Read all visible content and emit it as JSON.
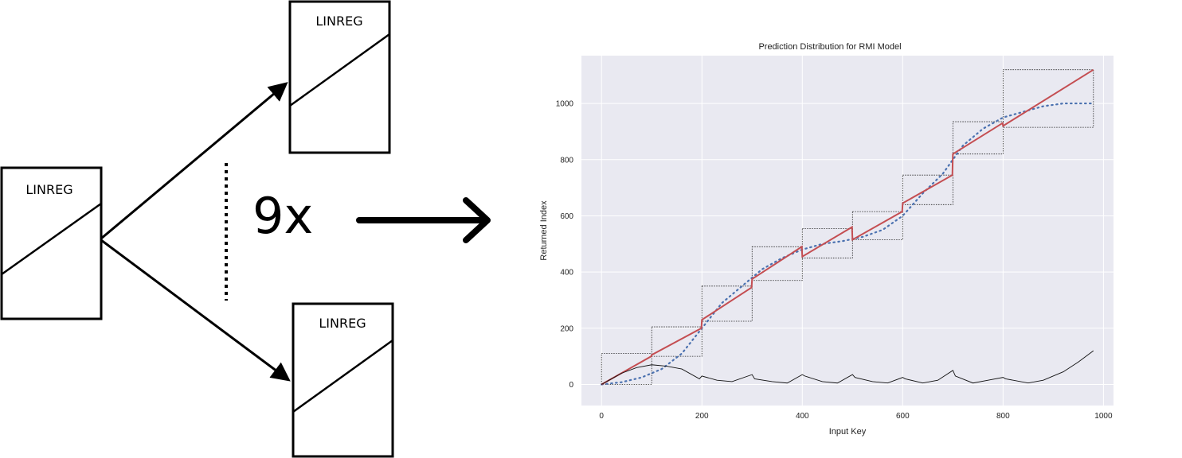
{
  "diagram": {
    "root_label": "LINREG",
    "top_child_label": "LINREG",
    "bottom_child_label": "LINREG",
    "multiplier_label": "9x"
  },
  "chart_data": {
    "type": "line",
    "title": "Prediction Distribution for RMI Model",
    "xlabel": "Input Key",
    "ylabel": "Returned Index",
    "xlim": [
      -40,
      1020
    ],
    "ylim": [
      -75,
      1170
    ],
    "xticks": [
      0,
      200,
      400,
      600,
      800,
      1000
    ],
    "yticks": [
      0,
      200,
      400,
      600,
      800,
      1000
    ],
    "grid": true,
    "background": "#e9e9f1",
    "series": [
      {
        "style": "dotted",
        "color": "#4c72b0",
        "x": [
          0,
          40,
          80,
          120,
          160,
          200,
          240,
          280,
          320,
          360,
          400,
          440,
          480,
          520,
          560,
          600,
          640,
          680,
          720,
          760,
          800,
          840,
          880,
          920,
          960,
          980
        ],
        "y": [
          0,
          8,
          25,
          55,
          110,
          200,
          290,
          350,
          410,
          450,
          480,
          500,
          510,
          525,
          550,
          600,
          680,
          750,
          850,
          910,
          950,
          970,
          990,
          1000,
          1000,
          1000
        ]
      },
      {
        "style": "solid",
        "color": "#c44e52",
        "x": [
          0,
          99,
          100,
          199,
          200,
          299,
          300,
          399,
          400,
          499,
          500,
          599,
          600,
          699,
          700,
          799,
          800,
          980
        ],
        "y": [
          0,
          100,
          105,
          200,
          230,
          345,
          375,
          490,
          455,
          560,
          515,
          615,
          645,
          745,
          820,
          930,
          920,
          1120
        ]
      },
      {
        "style": "solid",
        "color": "#111111",
        "x": [
          0,
          40,
          70,
          100,
          130,
          160,
          195,
          200,
          230,
          260,
          300,
          305,
          340,
          370,
          400,
          405,
          440,
          470,
          500,
          505,
          540,
          570,
          600,
          605,
          640,
          670,
          700,
          705,
          740,
          770,
          800,
          805,
          850,
          880,
          920,
          950,
          980
        ],
        "y": [
          0,
          40,
          60,
          70,
          65,
          55,
          20,
          30,
          15,
          10,
          35,
          20,
          10,
          5,
          35,
          30,
          10,
          5,
          35,
          25,
          10,
          5,
          25,
          20,
          5,
          15,
          50,
          30,
          5,
          15,
          25,
          20,
          5,
          15,
          45,
          80,
          120
        ]
      }
    ],
    "segment_boxes": [
      {
        "x": [
          0,
          100
        ],
        "y": [
          0,
          110
        ]
      },
      {
        "x": [
          100,
          200
        ],
        "y": [
          100,
          205
        ]
      },
      {
        "x": [
          200,
          300
        ],
        "y": [
          225,
          350
        ]
      },
      {
        "x": [
          300,
          400
        ],
        "y": [
          370,
          490
        ]
      },
      {
        "x": [
          400,
          500
        ],
        "y": [
          450,
          555
        ]
      },
      {
        "x": [
          500,
          600
        ],
        "y": [
          515,
          615
        ]
      },
      {
        "x": [
          600,
          700
        ],
        "y": [
          640,
          745
        ]
      },
      {
        "x": [
          700,
          800
        ],
        "y": [
          820,
          935
        ]
      },
      {
        "x": [
          800,
          980
        ],
        "y": [
          915,
          1120
        ]
      }
    ]
  }
}
